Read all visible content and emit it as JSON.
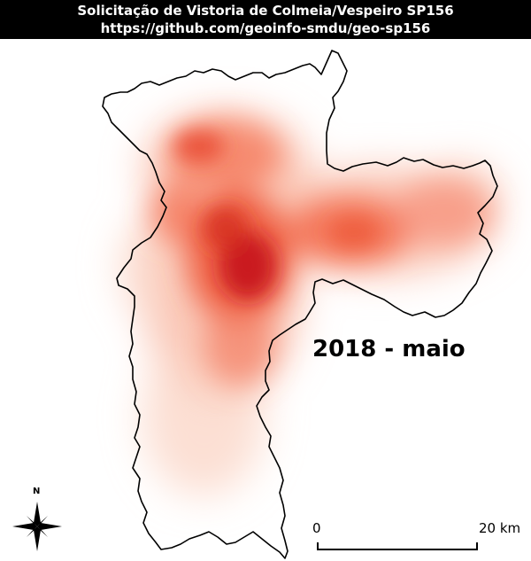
{
  "header": {
    "title": "Solicitação de Vistoria de Colmeia/Vespeiro SP156",
    "url": "https://github.com/geoinfo-smdu/geo-sp156"
  },
  "map": {
    "period_label": "2018 - maio",
    "heat_colors": {
      "low": "#fde0d4",
      "mid": "#f26a4a",
      "high": "#c8161c"
    },
    "boundary_color": "#000000"
  },
  "north_arrow": {
    "label": "N",
    "icon": "compass-rose-icon"
  },
  "scale_bar": {
    "start_label": "0",
    "end_label": "20 km"
  }
}
